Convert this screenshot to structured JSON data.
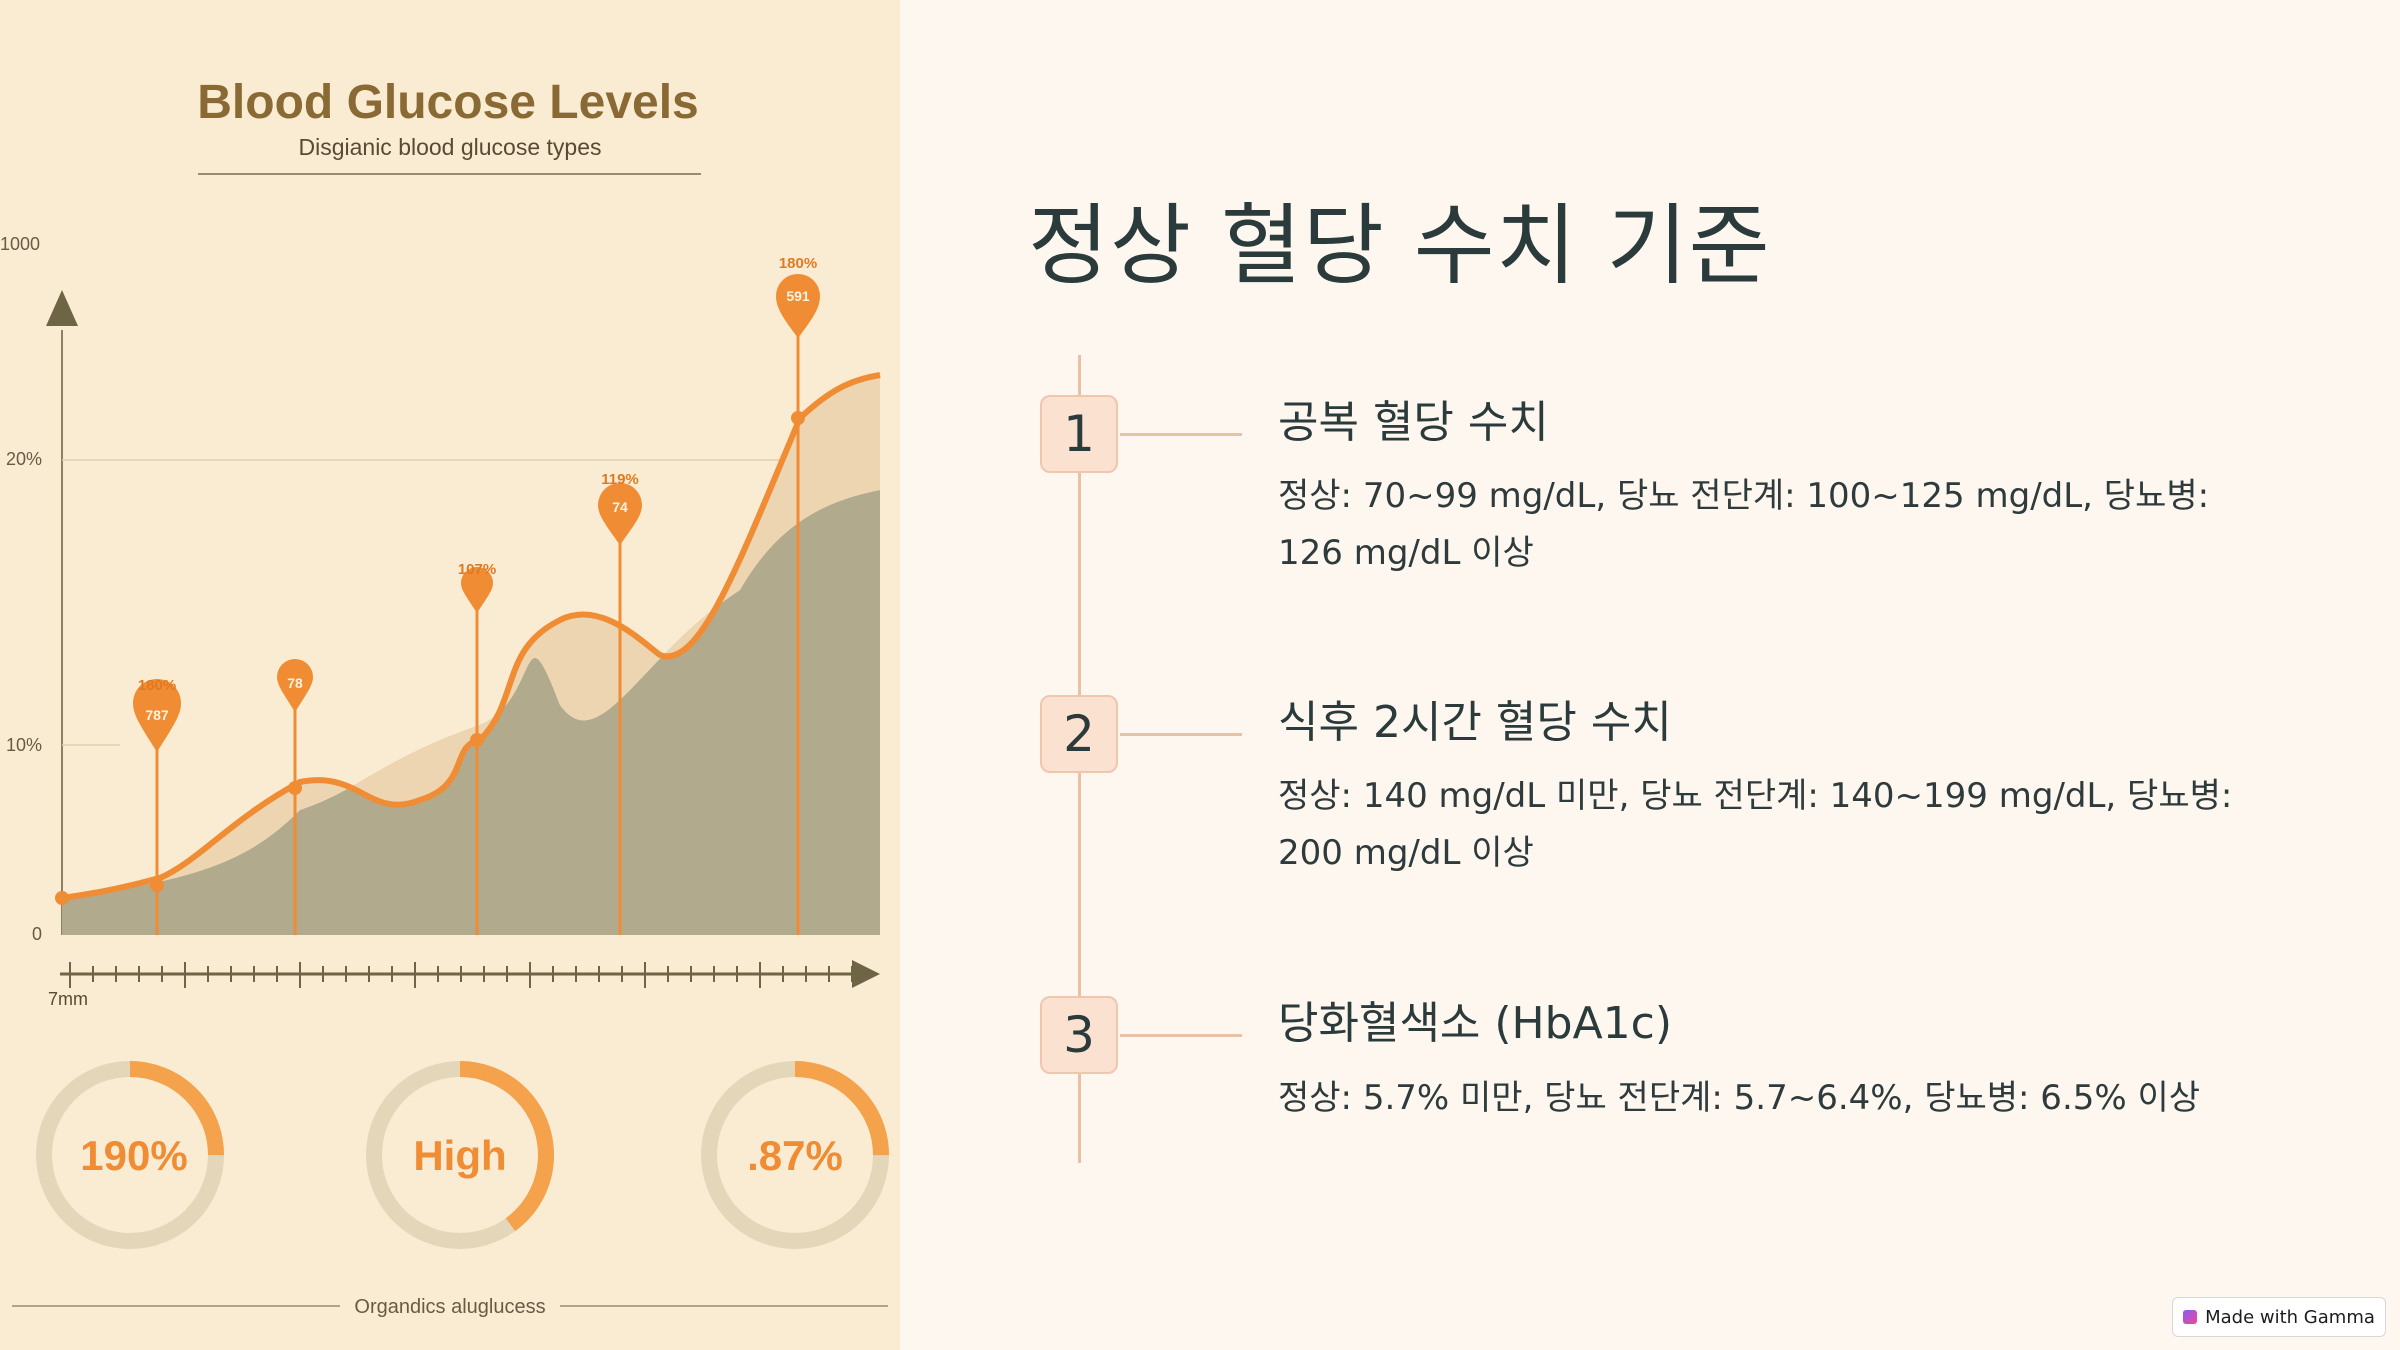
{
  "infographic": {
    "title": "Blood Glucose Levels",
    "subtitle": "Disgianic blood glucose types",
    "y_ticks": [
      "1000",
      "20%",
      "10%",
      "0"
    ],
    "x_label": "7mm",
    "markers": [
      {
        "top": "180%",
        "inner": "787"
      },
      {
        "top": "",
        "inner": "78"
      },
      {
        "top": "107%",
        "inner": ""
      },
      {
        "top": "119%",
        "inner": "74"
      },
      {
        "top": "180%",
        "inner": "591"
      }
    ],
    "gauges": [
      {
        "label": "190%",
        "fraction": 0.25
      },
      {
        "label": "High",
        "fraction": 0.4
      },
      {
        "label": ".87%",
        "fraction": 0.25
      }
    ],
    "footer": "Organdics aluglucess"
  },
  "chart_data": {
    "type": "area",
    "title": "Blood Glucose Levels",
    "subtitle": "Disgianic blood glucose types",
    "xlabel": "7mm",
    "ylabel": "",
    "y_tick_labels": [
      "0",
      "10%",
      "20%",
      "1000"
    ],
    "series": [
      {
        "x": [
          0,
          1,
          2,
          3,
          4,
          5,
          6,
          7
        ],
        "values": [
          3,
          4,
          12,
          5,
          12,
          6,
          18,
          29
        ]
      }
    ]
  },
  "slide": {
    "title": "정상 혈당 수치 기준",
    "steps": [
      {
        "number": "1",
        "title": "공복 혈당 수치",
        "description": "정상: 70~99 mg/dL, 당뇨 전단계: 100~125 mg/dL, 당뇨병: 126 mg/dL 이상"
      },
      {
        "number": "2",
        "title": "식후 2시간 혈당 수치",
        "description": "정상: 140 mg/dL 미만, 당뇨 전단계: 140~199 mg/dL, 당뇨병: 200 mg/dL 이상"
      },
      {
        "number": "3",
        "title": "당화혈색소 (HbA1c)",
        "description": "정상: 5.7% 미만, 당뇨 전단계: 5.7~6.4%, 당뇨병: 6.5% 이상"
      }
    ]
  },
  "badge": {
    "label": "Made with Gamma"
  },
  "colors": {
    "accent": "#f08c33",
    "left_bg": "#faecd3",
    "right_bg": "#fdf7f0",
    "text": "#2b3a3b",
    "timeline": "#e9c1a6"
  }
}
